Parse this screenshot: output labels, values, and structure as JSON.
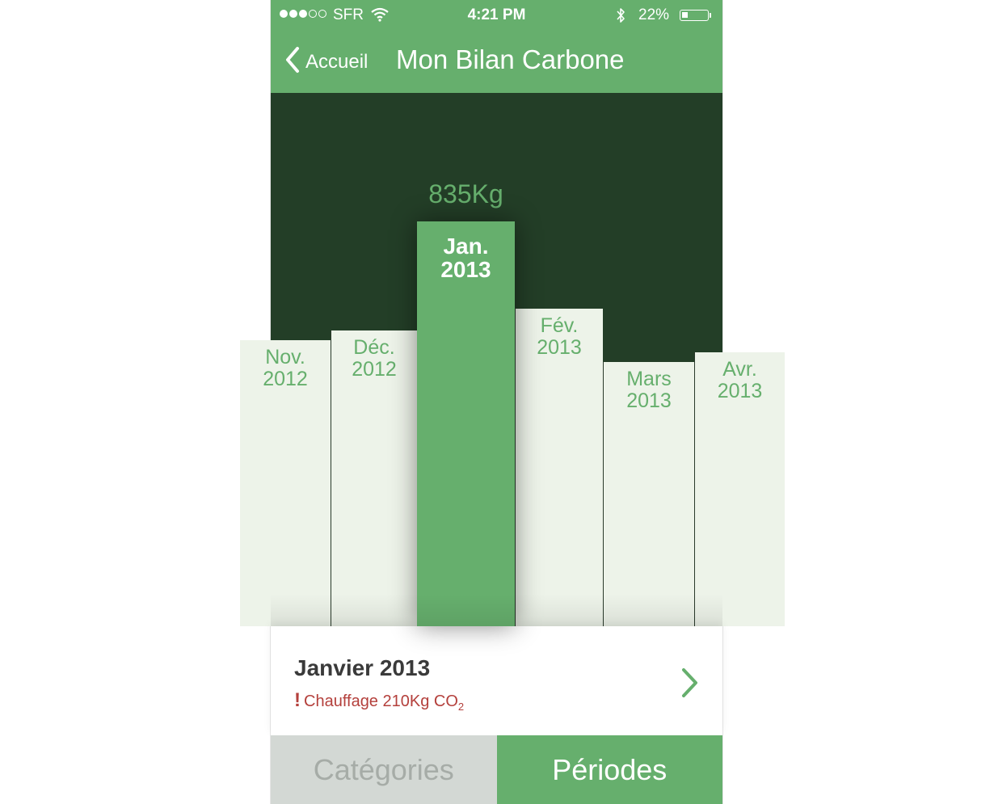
{
  "status_bar": {
    "carrier": "SFR",
    "time": "4:21 PM",
    "battery": "22%",
    "battery_level": 0.22,
    "signal_bars_filled": 3,
    "signal_bars_total": 5,
    "icons": [
      "wifi-icon",
      "bluetooth-icon",
      "battery-icon"
    ]
  },
  "nav": {
    "back_label": "Accueil",
    "title": "Mon Bilan Carbone"
  },
  "chart_data": {
    "type": "bar",
    "selected_index": 2,
    "selected_value_label": "835Kg",
    "categories": [
      {
        "label": "Nov.\n2012",
        "value": 590
      },
      {
        "label": "Déc.\n2012",
        "value": 610
      },
      {
        "label": "Jan.\n2013",
        "value": 835
      },
      {
        "label": "Fév.\n2013",
        "value": 655
      },
      {
        "label": "Mars\n2013",
        "value": 545
      },
      {
        "label": "Avr.\n2013",
        "value": 565
      }
    ]
  },
  "detail": {
    "title": "Janvier 2013",
    "alert_mark": "!",
    "alert_text": "Chauffage 210Kg CO",
    "alert_subscript": "2"
  },
  "tabs": [
    {
      "label": "Catégories",
      "active": false
    },
    {
      "label": "Périodes",
      "active": true
    }
  ],
  "colors": {
    "accent": "#66af6d",
    "chart_background": "#233e27",
    "bar_fill": "#edf3e9",
    "alert": "#b4403c",
    "inactive_tab": "#d3d8d4"
  }
}
